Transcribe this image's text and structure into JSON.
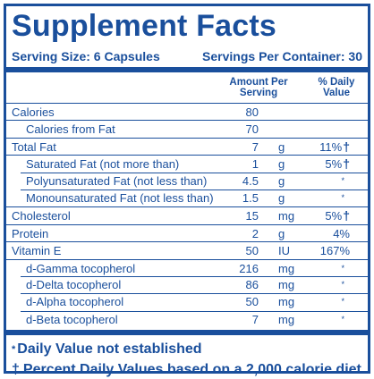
{
  "title": "Supplement Facts",
  "serving_size": "Serving Size: 6 Capsules",
  "servings_per_container": "Servings Per Container: 30",
  "columns": {
    "amount_line1": "Amount Per",
    "amount_line2": "Serving",
    "dv_line1": "% Daily",
    "dv_line2": "Value"
  },
  "rows": [
    {
      "name": "Calories",
      "amount": "80",
      "unit": "",
      "dv": ""
    },
    {
      "name": "Calories from Fat",
      "amount": "70",
      "unit": "",
      "dv": ""
    },
    {
      "name": "Total Fat",
      "amount": "7",
      "unit": "g",
      "dv": "11%",
      "mark": "†"
    },
    {
      "name": "Saturated Fat (not more than)",
      "amount": "1",
      "unit": "g",
      "dv": "5%",
      "mark": "†"
    },
    {
      "name": "Polyunsaturated Fat (not less than)",
      "amount": "4.5",
      "unit": "g",
      "dv": "*"
    },
    {
      "name": "Monounsaturated Fat (not less than)",
      "amount": "1.5",
      "unit": "g",
      "dv": "*"
    },
    {
      "name": "Cholesterol",
      "amount": "15",
      "unit": "mg",
      "dv": "5%",
      "mark": "†"
    },
    {
      "name": "Protein",
      "amount": "2",
      "unit": "g",
      "dv": "4%"
    },
    {
      "name": "Vitamin E",
      "amount": "50",
      "unit": "IU",
      "dv": "167%"
    },
    {
      "name": "d-Gamma tocopherol",
      "amount": "216",
      "unit": "mg",
      "dv": "*"
    },
    {
      "name": "d-Delta tocopherol",
      "amount": "86",
      "unit": "mg",
      "dv": "*"
    },
    {
      "name": "d-Alpha tocopherol",
      "amount": "50",
      "unit": "mg",
      "dv": "*"
    },
    {
      "name": "d-Beta tocopherol",
      "amount": "7",
      "unit": "mg",
      "dv": "*"
    }
  ],
  "footnotes": {
    "star_symbol": "*",
    "star_text": "Daily Value not established",
    "dagger_symbol": "†",
    "dagger_text": "Percent Daily Values based on a 2,000 calorie diet"
  },
  "colors": {
    "label_blue": "#1a4f9c"
  }
}
